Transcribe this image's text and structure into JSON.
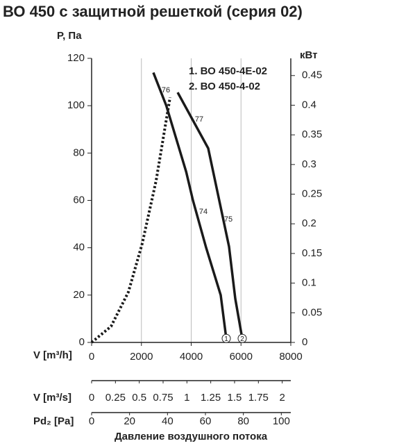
{
  "chart_data": {
    "type": "line",
    "title": "ВО 450 с защитной решеткой (серия 02)",
    "ylabel": "P, Па",
    "y2label": "кВт",
    "xlabel": "V [m³/h]",
    "xlim": [
      0,
      8000
    ],
    "xticks": [
      0,
      2000,
      4000,
      6000,
      8000
    ],
    "ylim": [
      0,
      120
    ],
    "yticks": [
      0,
      20,
      40,
      60,
      80,
      100,
      120
    ],
    "y2lim": [
      0,
      0.479
    ],
    "y2ticks": [
      0,
      0.05,
      0.1,
      0.15,
      0.2,
      0.25,
      0.3,
      0.35,
      0.4,
      0.45
    ],
    "grid": "x",
    "series": [
      {
        "name": "1. ВО 450-4Е-02",
        "color": "#1a1a1a",
        "marker_label": "1",
        "x": [
          2480,
          3000,
          3800,
          4070,
          4600,
          5185,
          5408
        ],
        "values": [
          114,
          100,
          72,
          60,
          40,
          20,
          1.7
        ]
      },
      {
        "name": "2. ВО 450-4-02",
        "color": "#1a1a1a",
        "marker_label": "2",
        "x": [
          3456,
          4683,
          5519,
          5770,
          6049
        ],
        "values": [
          105.6,
          82,
          40.5,
          18.5,
          1.7
        ]
      },
      {
        "color": "#1a1a1a",
        "axis": "y2",
        "dashed": true,
        "x": [
          0,
          780,
          1477,
          2035,
          2592,
          3150
        ],
        "values": [
          0,
          0.027,
          0.085,
          0.167,
          0.273,
          0.413
        ]
      }
    ],
    "annotations": [
      "76",
      "77",
      "74",
      "75"
    ],
    "extra_axes": [
      {
        "label": "V [m³/s]",
        "xlim": [
          0,
          2.09
        ],
        "xticks": [
          0,
          0.25,
          0.5,
          0.75,
          1,
          1.25,
          1.5,
          1.75,
          2
        ]
      },
      {
        "label": "Pd₂ [Pa]",
        "xlim": [
          0,
          105
        ],
        "xticks": [
          0,
          20,
          40,
          60,
          80,
          100
        ]
      }
    ],
    "footer": "Давление воздушного потока"
  }
}
